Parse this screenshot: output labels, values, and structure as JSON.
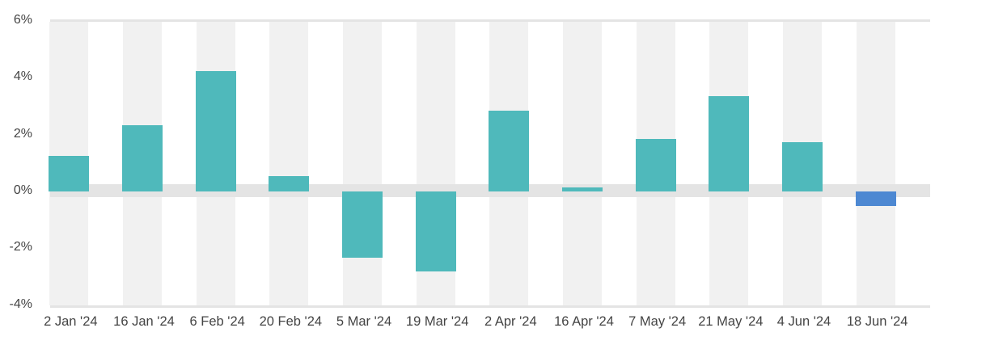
{
  "chart_data": {
    "type": "bar",
    "title": "",
    "xlabel": "",
    "ylabel": "",
    "ylim": [
      -4,
      6
    ],
    "yticks": [
      "6%",
      "4%",
      "2%",
      "0%",
      "-2%",
      "-4%"
    ],
    "ytick_values": [
      6,
      4,
      2,
      0,
      -2,
      -4
    ],
    "grid": false,
    "legend": null,
    "categories": [
      "2 Jan '24",
      "16 Jan '24",
      "6 Feb '24",
      "20 Feb '24",
      "5 Mar '24",
      "19 Mar '24",
      "2 Apr '24",
      "16 Apr '24",
      "7 May '24",
      "21 May '24",
      "4 Jun '24",
      "18 Jun '24"
    ],
    "values": [
      1.25,
      2.33,
      4.23,
      0.54,
      -2.33,
      -2.81,
      2.84,
      0.14,
      1.85,
      3.35,
      1.73,
      -0.51
    ],
    "colors": [
      "#4fb9bb",
      "#4fb9bb",
      "#4fb9bb",
      "#4fb9bb",
      "#4fb9bb",
      "#4fb9bb",
      "#4fb9bb",
      "#4fb9bb",
      "#4fb9bb",
      "#4fb9bb",
      "#4fb9bb",
      "#4d88d2"
    ],
    "unit": "%"
  },
  "style": {
    "bar_color": "#4fb9bb",
    "highlight_color": "#4d88d2",
    "stripe_color": "#f1f1f1",
    "zero_band_color": "#e4e4e4"
  }
}
